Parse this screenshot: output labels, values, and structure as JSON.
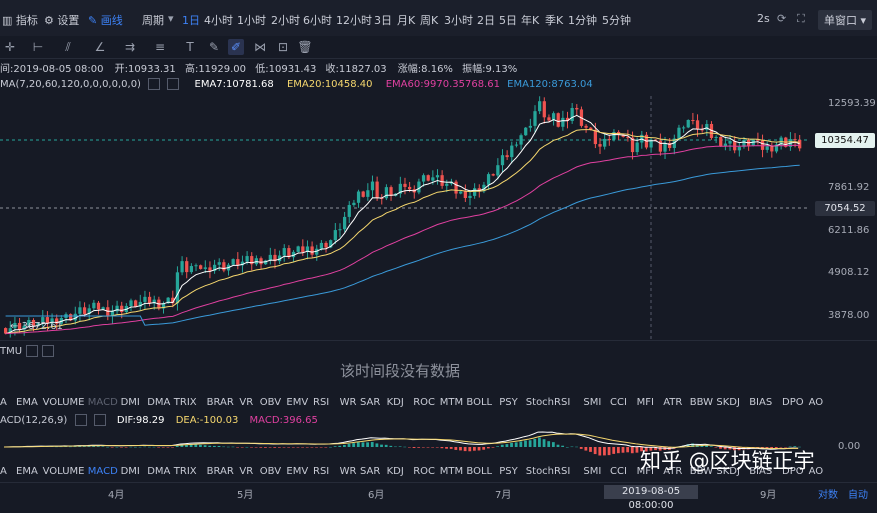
{
  "toolbar": {
    "indicator_label": "指标",
    "settings_label": "设置",
    "draw_label": "画线",
    "period_label": "周期",
    "periods": [
      "1日",
      "4小时",
      "1小时",
      "2小时",
      "6小时",
      "12小时",
      "3日",
      "月K",
      "周K",
      "3小时",
      "2日",
      "5日",
      "年K",
      "季K",
      "1分钟",
      "5分钟"
    ],
    "active_period": "1日",
    "refresh_label": "2s",
    "window_mode": "单窗口"
  },
  "info": {
    "time": "间:2019-08-05 08:00",
    "open": "开:10933.31",
    "high": "高:11929.00",
    "low": "低:10931.43",
    "close": "收:11827.03",
    "change": "涨幅:8.16%",
    "amplitude": "振幅:9.13%"
  },
  "ma_legend": {
    "params": "MA(7,20,60,120,0,0,0,0,0,0)",
    "ema7": "EMA7:10781.68",
    "ema20": "EMA20:10458.40",
    "ema60": "EMA60:9970.3",
    "ema60_extra": "5768.61",
    "ema120": "EMA120:8763.04"
  },
  "colors": {
    "up": "#26a69a",
    "down": "#ef5350",
    "ema7": "#ffffff",
    "ema20": "#f5d76e",
    "ema60": "#e040a0",
    "ema120": "#3a9ad9",
    "accent": "#3d82f6",
    "current_price_bg": "#26a69a",
    "line_price_bg": "#2c313e"
  },
  "y_axis": {
    "labels": [
      "12593.39",
      "7861.92",
      "6211.86",
      "4908.12",
      "3878.00"
    ],
    "current_price": "10354.47",
    "line_price": "7054.52",
    "low_marker": "3672.61"
  },
  "price_scale": {
    "min": 3500,
    "max": 13600
  },
  "candles_base": [
    3740,
    3760,
    3780,
    3800,
    3790,
    3820,
    3850,
    3830,
    3860,
    3880,
    3900,
    3950,
    3980,
    3970,
    4000,
    4050,
    4100,
    4120,
    4150,
    4180,
    4200,
    4150,
    4120,
    4130,
    4160,
    4190,
    4230,
    4260,
    4290,
    4300,
    4320,
    4340,
    4330,
    4300,
    4320,
    4350,
    4400,
    5100,
    5300,
    5200,
    5250,
    5150,
    5260,
    5180,
    5300,
    5350,
    5300,
    5280,
    5320,
    5360,
    5400,
    5380,
    5420,
    5400,
    5450,
    5500,
    5480,
    5520,
    5560,
    5600,
    5700,
    5650,
    5680,
    5720,
    5780,
    5820,
    5800,
    5850,
    5900,
    6000,
    6100,
    6300,
    6600,
    6900,
    7200,
    7600,
    7900,
    8000,
    8100,
    8300,
    7900,
    7700,
    8000,
    7950,
    7850,
    8100,
    8300,
    8000,
    8200,
    8500,
    8600,
    8700,
    8650,
    8550,
    8400,
    8300,
    8200,
    8000,
    7900,
    7950,
    7850,
    8000,
    8200,
    8300,
    8600,
    8900,
    9200,
    9500,
    9800,
    10200,
    10700,
    11000,
    11200,
    11800,
    12500,
    12900,
    12300,
    11800,
    12000,
    11600,
    11900,
    12200,
    12800,
    12400,
    11800,
    11400,
    11000,
    10600,
    10200,
    10400,
    10800,
    11000,
    11300,
    10900,
    10600,
    10200,
    10500,
    10700,
    10400,
    10600,
    10300,
    10100,
    10350,
    10500,
    10800,
    11200,
    11700,
    11900,
    11600,
    11500,
    11200,
    11300,
    10900,
    10700,
    10600,
    10500,
    10400,
    10300,
    10250,
    10400,
    10500,
    10600,
    10300,
    10200,
    10150,
    10300,
    10450,
    10600,
    10500,
    10700,
    10400,
    10350
  ],
  "indicator_tabs": {
    "row1": [
      "EMA",
      "VOLUME",
      "MACD",
      "DMI",
      "DMA",
      "TRIX",
      "BRAR",
      "VR",
      "OBV",
      "EMV",
      "RSI",
      "WR",
      "SAR",
      "KDJ",
      "ROC",
      "MTM",
      "BOLL",
      "PSY",
      "StochRSI",
      "SMI",
      "CCI",
      "MFI",
      "ATR",
      "BBW",
      "SKDJ",
      "BIAS",
      "DPO",
      "AO"
    ],
    "row1_prefix": "A",
    "row2_prefix": "A",
    "row2": [
      "EMA",
      "VOLUME",
      "MACD",
      "DMI",
      "DMA",
      "TRIX",
      "BRAR",
      "VR",
      "OBV",
      "EMV",
      "RSI",
      "WR",
      "SAR",
      "KDJ",
      "ROC",
      "MTM",
      "BOLL",
      "PSY",
      "StochRSI",
      "SMI",
      "CCI",
      "MFI",
      "ATR",
      "BBW",
      "SKDJ",
      "BIAS",
      "DPO",
      "AO"
    ]
  },
  "sub_panel": {
    "tmu_label": "TMU",
    "no_data": "该时间段没有数据"
  },
  "macd": {
    "params": "ACD(12,26,9)",
    "dif": "DIF:98.29",
    "dea": "DEA:-100.03",
    "macd": "MACD:396.65",
    "zero_label": "0.00"
  },
  "x_axis": {
    "months": [
      "4月",
      "5月",
      "6月",
      "7月",
      "9月"
    ],
    "cursor_date": "2019-08-05 08:00:00",
    "scale_mode": "对数",
    "auto_mode": "自动"
  },
  "watermark": "知乎 @区块链正宇"
}
